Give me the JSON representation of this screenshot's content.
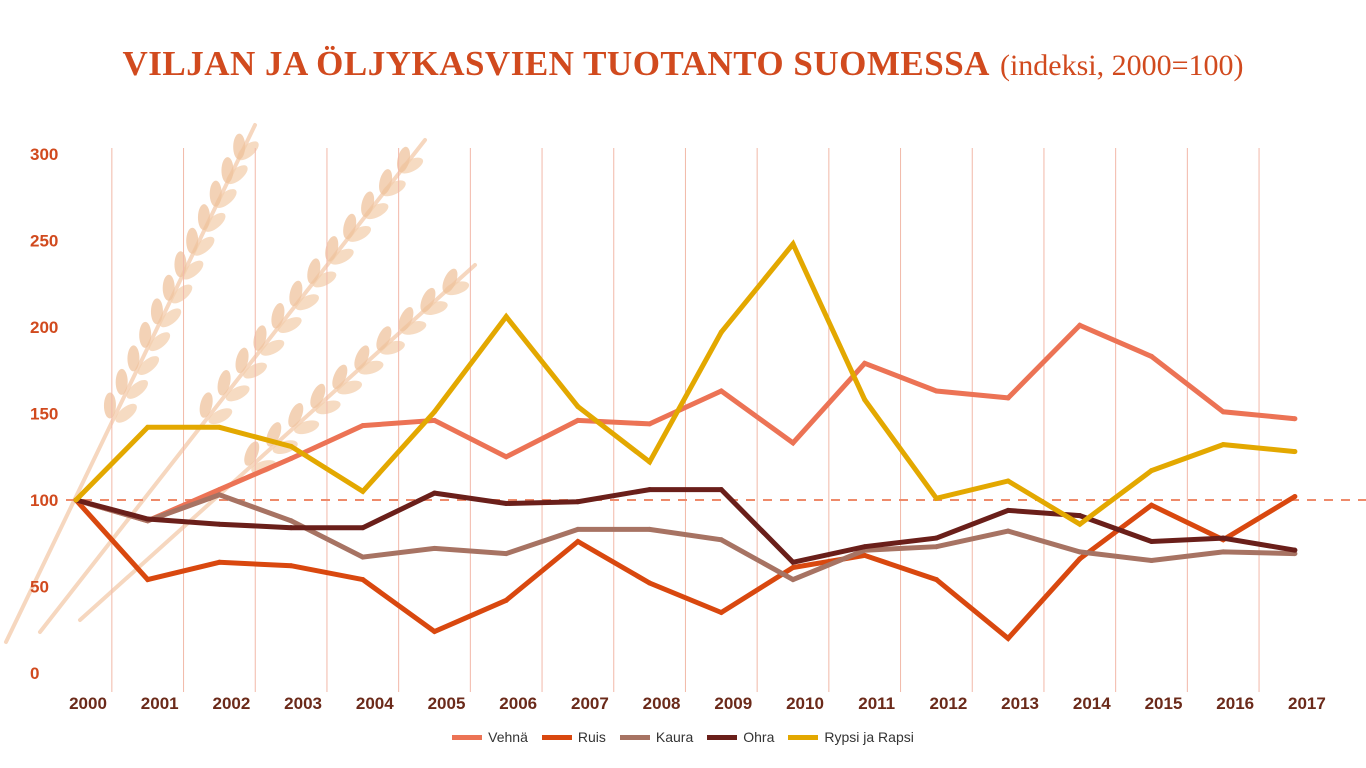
{
  "title": {
    "main": "VILJAN JA ÖLJYKASVIEN TUOTANTO SUOMESSA",
    "sub": "(indeksi, 2000=100)"
  },
  "colors": {
    "title": "#d14a1e",
    "grid": "#f2b8a8",
    "reference_line": "#ee8a6a",
    "ytick": "#d14a1e",
    "xtick": "#6b2a1a"
  },
  "decoration": "wheat-ears-illustration",
  "chart_data": {
    "type": "line",
    "categories": [
      "2000",
      "2001",
      "2002",
      "2003",
      "2004",
      "2005",
      "2006",
      "2007",
      "2008",
      "2009",
      "2010",
      "2011",
      "2012",
      "2013",
      "2014",
      "2015",
      "2016",
      "2017"
    ],
    "ylim": [
      0,
      300
    ],
    "yticks": [
      "0",
      "50",
      "100",
      "150",
      "200",
      "250",
      "300"
    ],
    "reference_value": 100,
    "grid": "vertical",
    "legend_position": "bottom",
    "series": [
      {
        "name": "Vehnä",
        "color": "#ec7355",
        "values": [
          100,
          88,
          106,
          124,
          143,
          146,
          125,
          146,
          144,
          163,
          133,
          179,
          163,
          159,
          201,
          183,
          151,
          147
        ]
      },
      {
        "name": "Ruis",
        "color": "#d9480f",
        "values": [
          100,
          54,
          64,
          62,
          54,
          24,
          42,
          76,
          52,
          35,
          61,
          68,
          54,
          20,
          66,
          97,
          77,
          102
        ]
      },
      {
        "name": "Kaura",
        "color": "#a77363",
        "values": [
          100,
          88,
          103,
          88,
          67,
          72,
          69,
          83,
          83,
          77,
          54,
          71,
          73,
          82,
          70,
          65,
          70,
          69
        ]
      },
      {
        "name": "Ohra",
        "color": "#6a1f1a",
        "values": [
          100,
          89,
          86,
          84,
          84,
          104,
          98,
          99,
          106,
          106,
          64,
          73,
          78,
          94,
          91,
          76,
          78,
          71
        ]
      },
      {
        "name": "Rypsi ja Rapsi",
        "color": "#e3a800",
        "values": [
          100,
          142,
          142,
          131,
          105,
          151,
          206,
          154,
          122,
          197,
          248,
          158,
          101,
          111,
          86,
          117,
          132,
          128
        ]
      }
    ]
  }
}
